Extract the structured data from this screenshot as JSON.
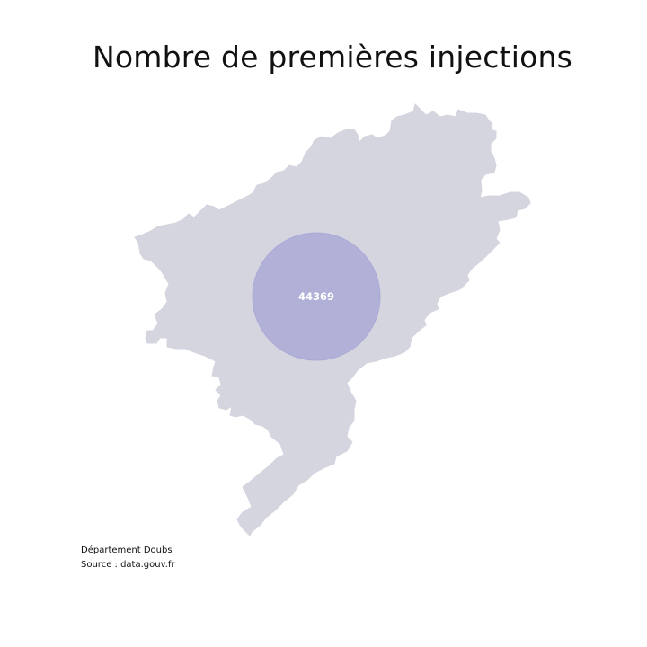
{
  "title": "Nombre de premières injections",
  "region": {
    "name": "Doubs",
    "fill": "#d5d5e0"
  },
  "marker": {
    "value": "44369",
    "fill": "#aaaad6",
    "label_color": "#ffffff"
  },
  "captions": {
    "department": "Département Doubs",
    "source": "Source : data.gouv.fr"
  }
}
